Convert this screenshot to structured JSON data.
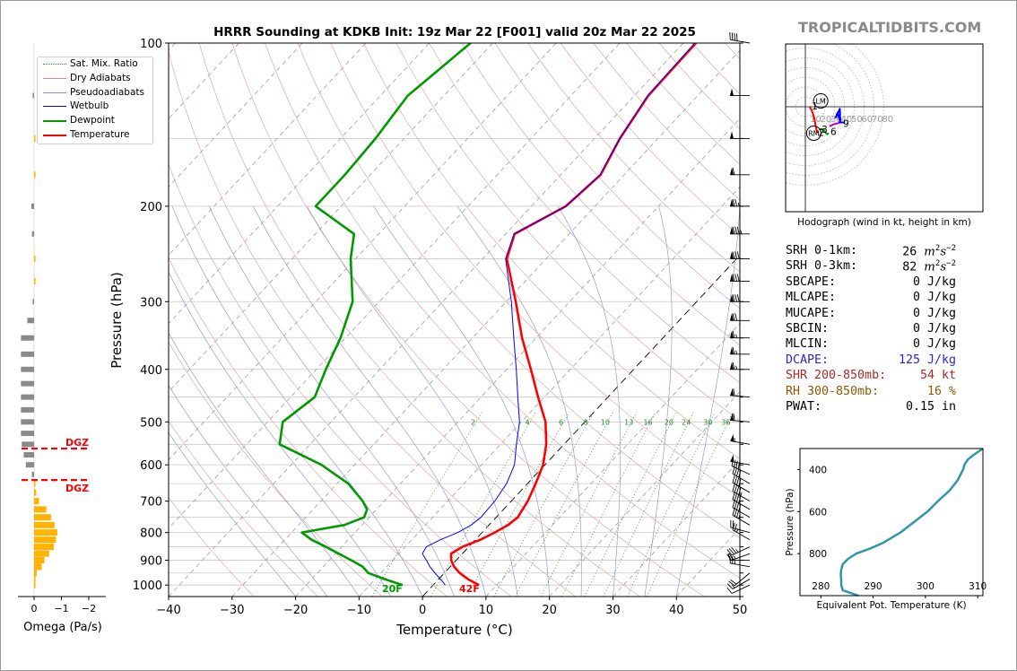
{
  "site": {
    "brand": "TROPICALTIDBITS.COM"
  },
  "chart_data": {
    "type": "line",
    "title": "HRRR Sounding at KDKB Init: 19z Mar 22 [F001] valid 20z Mar 22 2025",
    "xlabel": "Temperature (°C)",
    "ylabel": "Pressure (hPa)",
    "xlim": [
      -40,
      50
    ],
    "ylim": [
      1050,
      100
    ],
    "y_scale": "log",
    "x_ticks": [
      -40,
      -30,
      -20,
      -10,
      0,
      10,
      20,
      30,
      40,
      50
    ],
    "x_tick_labels": [
      "−40",
      "−30",
      "−20",
      "−10",
      "0",
      "10",
      "20",
      "30",
      "40",
      "50"
    ],
    "y_ticks": [
      100,
      200,
      300,
      400,
      500,
      600,
      700,
      800,
      900,
      1000
    ],
    "y_tick_labels": [
      "100",
      "200",
      "300",
      "400",
      "500",
      "600",
      "700",
      "800",
      "900",
      "1000"
    ],
    "legend_position": "top-left",
    "legend": [
      {
        "label": "Sat. Mix. Ratio",
        "color": "#2e8b2e",
        "style": "dotted"
      },
      {
        "label": "Dry Adiabats",
        "color": "#e08a8a",
        "style": "solid"
      },
      {
        "label": "Pseudoadiabats",
        "color": "#8c8cd9",
        "style": "solid"
      },
      {
        "label": "Wetbulb",
        "color": "#0000ff",
        "style": "solid"
      },
      {
        "label": "Dewpoint",
        "color": "#009900",
        "style": "solid"
      },
      {
        "label": "Temperature",
        "color": "#ff0000",
        "style": "solid"
      }
    ],
    "series": [
      {
        "name": "Temperature",
        "color": "#ff0000",
        "points": [
          [
            1000,
            7.2
          ],
          [
            975,
            4.6
          ],
          [
            950,
            2.4
          ],
          [
            925,
            0.6
          ],
          [
            900,
            -0.8
          ],
          [
            875,
            -1.8
          ],
          [
            850,
            -1.0
          ],
          [
            825,
            0.8
          ],
          [
            800,
            2.0
          ],
          [
            775,
            3.0
          ],
          [
            750,
            3.4
          ],
          [
            700,
            2.6
          ],
          [
            650,
            1.3
          ],
          [
            600,
            -0.3
          ],
          [
            550,
            -2.8
          ],
          [
            500,
            -6.2
          ],
          [
            450,
            -11.0
          ],
          [
            400,
            -16.2
          ],
          [
            350,
            -22.2
          ],
          [
            300,
            -28.5
          ],
          [
            250,
            -36.2
          ],
          [
            225,
            -38.6
          ],
          [
            200,
            -34.6
          ],
          [
            175,
            -33.7
          ],
          [
            150,
            -36.0
          ],
          [
            125,
            -37.8
          ],
          [
            100,
            -38.0
          ]
        ]
      },
      {
        "name": "Wetbulb",
        "color": "#0000ff",
        "points": [
          [
            1000,
            1.9
          ],
          [
            975,
            0.3
          ],
          [
            950,
            -1.5
          ],
          [
            925,
            -3.2
          ],
          [
            900,
            -4.7
          ],
          [
            875,
            -6.3
          ],
          [
            850,
            -6.7
          ],
          [
            825,
            -5.5
          ],
          [
            800,
            -3.8
          ],
          [
            775,
            -2.8
          ],
          [
            750,
            -2.4
          ],
          [
            700,
            -2.6
          ],
          [
            650,
            -3.3
          ],
          [
            600,
            -4.8
          ],
          [
            550,
            -7.5
          ],
          [
            500,
            -10.3
          ],
          [
            450,
            -14.2
          ],
          [
            400,
            -18.5
          ],
          [
            350,
            -23.5
          ],
          [
            300,
            -29.2
          ],
          [
            250,
            -36.4
          ],
          [
            225,
            -38.7
          ],
          [
            200,
            -34.6
          ],
          [
            175,
            -33.8
          ],
          [
            150,
            -36.0
          ],
          [
            125,
            -37.9
          ],
          [
            100,
            -38.2
          ]
        ]
      },
      {
        "name": "Dewpoint",
        "color": "#009900",
        "points": [
          [
            1000,
            -4.8
          ],
          [
            975,
            -8.5
          ],
          [
            950,
            -12.0
          ],
          [
            925,
            -13.8
          ],
          [
            900,
            -16.5
          ],
          [
            875,
            -19.5
          ],
          [
            850,
            -22.5
          ],
          [
            825,
            -25.8
          ],
          [
            800,
            -28.4
          ],
          [
            775,
            -22.8
          ],
          [
            750,
            -20.8
          ],
          [
            725,
            -21.5
          ],
          [
            700,
            -23.4
          ],
          [
            650,
            -28.2
          ],
          [
            600,
            -35.2
          ],
          [
            550,
            -44.8
          ],
          [
            500,
            -47.6
          ],
          [
            450,
            -46.2
          ],
          [
            400,
            -48.5
          ],
          [
            350,
            -50.8
          ],
          [
            300,
            -54.2
          ],
          [
            250,
            -60.8
          ],
          [
            225,
            -63.9
          ],
          [
            200,
            -74.0
          ],
          [
            175,
            -74.0
          ],
          [
            150,
            -74.5
          ],
          [
            125,
            -75.7
          ],
          [
            100,
            -73.5
          ]
        ]
      }
    ],
    "surface_labels": {
      "temperature": "42F",
      "dewpoint": "20F"
    },
    "dgz_label": "DGZ",
    "dgz_pressures": [
      560,
      640
    ],
    "mix_ratio_values": [
      "2",
      "4",
      "6",
      "8",
      "10",
      "13",
      "16",
      "20",
      "24",
      "30",
      "36"
    ],
    "wind_barbs": [
      {
        "p": 1000,
        "dir": 245,
        "spd": 10
      },
      {
        "p": 975,
        "dir": 240,
        "spd": 15
      },
      {
        "p": 950,
        "dir": 230,
        "spd": 20
      },
      {
        "p": 925,
        "dir": 280,
        "spd": 25
      },
      {
        "p": 900,
        "dir": 270,
        "spd": 15
      },
      {
        "p": 875,
        "dir": 250,
        "spd": 25
      },
      {
        "p": 850,
        "dir": 245,
        "spd": 35
      },
      {
        "p": 825,
        "dir": 300,
        "spd": 25
      },
      {
        "p": 800,
        "dir": 285,
        "spd": 20
      },
      {
        "p": 775,
        "dir": 300,
        "spd": 35
      },
      {
        "p": 750,
        "dir": 300,
        "spd": 40
      },
      {
        "p": 725,
        "dir": 300,
        "spd": 40
      },
      {
        "p": 700,
        "dir": 300,
        "spd": 45
      },
      {
        "p": 675,
        "dir": 300,
        "spd": 40
      },
      {
        "p": 650,
        "dir": 300,
        "spd": 40
      },
      {
        "p": 625,
        "dir": 295,
        "spd": 40
      },
      {
        "p": 600,
        "dir": 280,
        "spd": 50
      },
      {
        "p": 550,
        "dir": 280,
        "spd": 55
      },
      {
        "p": 500,
        "dir": 275,
        "spd": 60
      },
      {
        "p": 450,
        "dir": 275,
        "spd": 60
      },
      {
        "p": 400,
        "dir": 270,
        "spd": 65
      },
      {
        "p": 375,
        "dir": 270,
        "spd": 65
      },
      {
        "p": 350,
        "dir": 270,
        "spd": 65
      },
      {
        "p": 325,
        "dir": 270,
        "spd": 70
      },
      {
        "p": 300,
        "dir": 270,
        "spd": 80
      },
      {
        "p": 275,
        "dir": 270,
        "spd": 80
      },
      {
        "p": 250,
        "dir": 270,
        "spd": 80
      },
      {
        "p": 225,
        "dir": 270,
        "spd": 85
      },
      {
        "p": 200,
        "dir": 270,
        "spd": 75
      },
      {
        "p": 175,
        "dir": 270,
        "spd": 60
      },
      {
        "p": 150,
        "dir": 270,
        "spd": 50
      },
      {
        "p": 125,
        "dir": 270,
        "spd": 50
      },
      {
        "p": 100,
        "dir": 280,
        "spd": 40
      }
    ]
  },
  "omega": {
    "xlabel": "Omega (Pa/s)",
    "x_ticks": [
      0,
      -1,
      -2
    ],
    "x_tick_labels": [
      "0",
      "−1",
      "−2"
    ],
    "bars": [
      {
        "p": 1000,
        "v": 0.05
      },
      {
        "p": 975,
        "v": 0.05
      },
      {
        "p": 950,
        "v": 0.1
      },
      {
        "p": 925,
        "v": 0.28
      },
      {
        "p": 900,
        "v": 0.38
      },
      {
        "p": 875,
        "v": 0.55
      },
      {
        "p": 850,
        "v": 0.72
      },
      {
        "p": 825,
        "v": 0.8
      },
      {
        "p": 800,
        "v": 0.85
      },
      {
        "p": 775,
        "v": 0.75
      },
      {
        "p": 750,
        "v": 0.62
      },
      {
        "p": 725,
        "v": 0.45
      },
      {
        "p": 700,
        "v": 0.18
      },
      {
        "p": 675,
        "v": 0.08
      },
      {
        "p": 650,
        "v": 0.05
      },
      {
        "p": 625,
        "v": -0.08
      },
      {
        "p": 600,
        "v": -0.3
      },
      {
        "p": 575,
        "v": -0.38
      },
      {
        "p": 550,
        "v": -0.45
      },
      {
        "p": 525,
        "v": -0.48
      },
      {
        "p": 500,
        "v": -0.48
      },
      {
        "p": 475,
        "v": -0.48
      },
      {
        "p": 450,
        "v": -0.48
      },
      {
        "p": 425,
        "v": -0.48
      },
      {
        "p": 400,
        "v": -0.48
      },
      {
        "p": 375,
        "v": -0.48
      },
      {
        "p": 350,
        "v": -0.48
      },
      {
        "p": 325,
        "v": -0.25
      },
      {
        "p": 300,
        "v": -0.05
      },
      {
        "p": 275,
        "v": 0.05
      },
      {
        "p": 250,
        "v": 0.05
      },
      {
        "p": 225,
        "v": -0.08
      },
      {
        "p": 200,
        "v": -0.1
      },
      {
        "p": 175,
        "v": 0.05
      },
      {
        "p": 150,
        "v": 0.05
      },
      {
        "p": 125,
        "v": -0.05
      }
    ]
  },
  "hodograph": {
    "caption": "Hodograph (wind in kt, height in km)",
    "ring_values": [
      10,
      20,
      30,
      40,
      50,
      60,
      70,
      80
    ],
    "ring_labels": [
      "10",
      "20",
      "30",
      "40",
      "50",
      "60",
      "70",
      "80"
    ],
    "markers": {
      "lm": "LM",
      "rm": "RM"
    },
    "storm_motion": {
      "lm": [
        33,
        6
      ],
      "rm": [
        18,
        -27
      ]
    },
    "height_labels": [
      {
        "text": "1",
        "u": 10,
        "v": 1
      },
      {
        "text": "2",
        "u": 24,
        "v": -26
      },
      {
        "text": "3",
        "u": 31,
        "v": -23
      },
      {
        "text": "6",
        "u": 50,
        "v": -25
      },
      {
        "text": "9",
        "u": 77,
        "v": -17
      }
    ],
    "segments": [
      {
        "color": "#ff0000",
        "points": [
          [
            9,
            0
          ],
          [
            14,
            -4
          ],
          [
            19,
            -11
          ],
          [
            22,
            -19
          ],
          [
            25,
            -26
          ],
          [
            28,
            -25
          ]
        ]
      },
      {
        "color": "#009900",
        "points": [
          [
            31,
            -23
          ],
          [
            38,
            -23
          ],
          [
            44,
            -27
          ],
          [
            47,
            -28
          ],
          [
            50,
            -27
          ]
        ]
      },
      {
        "color": "#bf00bf",
        "points": [
          [
            52,
            -20
          ],
          [
            60,
            -18
          ],
          [
            68,
            -17
          ],
          [
            75,
            -16
          ]
        ]
      },
      {
        "color": "#0000ff",
        "points": [
          [
            75,
            -16
          ],
          [
            74,
            -2
          ],
          [
            65,
            -11
          ],
          [
            69,
            -6
          ],
          [
            75,
            -16
          ],
          [
            85,
            -16
          ]
        ]
      }
    ]
  },
  "stats": [
    {
      "label": "SRH 0-1km:",
      "value": "26",
      "unit_html": true,
      "color": "#000000"
    },
    {
      "label": "SRH 0-3km:",
      "value": "82",
      "unit_html": true,
      "color": "#000000"
    },
    {
      "label": "SBCAPE:",
      "value": "0 J/kg",
      "color": "#000000"
    },
    {
      "label": "MLCAPE:",
      "value": "0 J/kg",
      "color": "#000000"
    },
    {
      "label": "MUCAPE:",
      "value": "0 J/kg",
      "color": "#000000"
    },
    {
      "label": "SBCIN:",
      "value": "0 J/kg",
      "color": "#000000"
    },
    {
      "label": "MLCIN:",
      "value": "0 J/kg",
      "color": "#000000"
    },
    {
      "label": "DCAPE:",
      "value": "125 J/kg",
      "color": "#2626d9"
    },
    {
      "label": "SHR 200-850mb:",
      "value": "54 kt",
      "color": "#a52a2a"
    },
    {
      "label": "RH 300-850mb:",
      "value": "16 %",
      "color": "#8b5a00"
    },
    {
      "label": "PWAT:",
      "value": "0.15 in",
      "color": "#000000"
    }
  ],
  "theta_e": {
    "xlabel": "Equivalent Pot. Temperature (K)",
    "ylabel": "Pressure (hPa)",
    "x_ticks": [
      280,
      290,
      300,
      310
    ],
    "x_tick_labels": [
      "280",
      "290",
      "300",
      "310"
    ],
    "y_ticks": [
      400,
      600,
      800
    ],
    "y_tick_labels": [
      "400",
      "600",
      "800"
    ],
    "xlim": [
      276,
      311
    ],
    "ylim": [
      1000,
      300
    ],
    "color": "#2e98aa",
    "points": [
      [
        1000,
        287.2
      ],
      [
        975,
        284.2
      ],
      [
        950,
        283.9
      ],
      [
        925,
        283.9
      ],
      [
        900,
        283.8
      ],
      [
        875,
        283.9
      ],
      [
        850,
        284.2
      ],
      [
        825,
        285.2
      ],
      [
        800,
        286.8
      ],
      [
        775,
        289.5
      ],
      [
        750,
        291.8
      ],
      [
        700,
        295.2
      ],
      [
        650,
        297.8
      ],
      [
        600,
        300.4
      ],
      [
        550,
        302.4
      ],
      [
        500,
        304.6
      ],
      [
        450,
        306.2
      ],
      [
        400,
        307.2
      ],
      [
        375,
        307.5
      ],
      [
        350,
        308.2
      ],
      [
        325,
        309.5
      ],
      [
        300,
        311.0
      ]
    ]
  }
}
